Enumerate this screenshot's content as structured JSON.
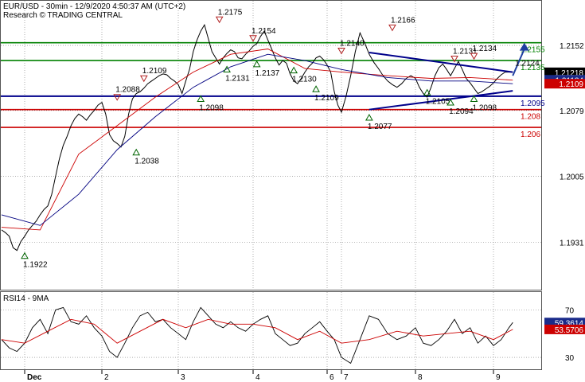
{
  "header": {
    "title": "EUR/USD - 30min - 12/9/2020 4:50:37 AM (UTC+2)",
    "subtitle": "Research © TRADING CENTRAL"
  },
  "rsi_panel": {
    "title": "RSI14 - 9MA"
  },
  "colors": {
    "price": "#000000",
    "ma_fast": "#cc0000",
    "ma_slow": "#000080",
    "resistance_lines": "#008000",
    "support_lines": "#cc0000",
    "pivot_line": "#00008b",
    "triangle_lines": "#00008b",
    "up_marker": "#006400",
    "down_marker": "#b22222",
    "target_arrow": "#1f3fa0",
    "current_price_tag": "#000000",
    "ma_tag": "#1a2b8a",
    "ma2_tag": "#cc0000",
    "rsi_tag": "#1a2b8a",
    "rsi_ma_tag": "#cc0000",
    "grid": "#7a7a7a"
  },
  "chart_data": [
    {
      "type": "line",
      "title": "EUR/USD - 30min - 12/9/2020 4:50:37 AM (UTC+2)",
      "x_tick_labels": [
        "Dec",
        "2",
        "3",
        "4",
        "6",
        "7",
        "8",
        "9"
      ],
      "y_tick_labels": [
        "1.2152",
        "1.2079",
        "1.2005",
        "1.1931"
      ],
      "y_ticks": [
        1.2152,
        1.2079,
        1.2005,
        1.1931
      ],
      "ylim": [
        1.1878,
        1.2202
      ],
      "grid": true,
      "horizontal_levels": [
        {
          "value": 1.2155,
          "label": "1.2155",
          "kind": "resistance"
        },
        {
          "value": 1.2135,
          "label": "1.2135",
          "kind": "resistance"
        },
        {
          "value": 1.2095,
          "label": "1.2095",
          "kind": "pivot"
        },
        {
          "value": 1.208,
          "label": "1.208",
          "kind": "support"
        },
        {
          "value": 1.206,
          "label": "1.206",
          "kind": "support"
        }
      ],
      "price_tags": [
        {
          "value": 1.21218,
          "label": "1.21218",
          "kind": "current"
        },
        {
          "value": 1.21134,
          "label": "1.21134",
          "kind": "ma"
        },
        {
          "value": 1.2109,
          "label": "1.2109",
          "kind": "ma2"
        }
      ],
      "annotations": [
        {
          "label": "1.1922",
          "x": 0.3,
          "y": 1.1922,
          "marker": "up"
        },
        {
          "label": "1.2088",
          "x": 1.5,
          "y": 1.2088,
          "marker": "down"
        },
        {
          "label": "1.2109",
          "x": 1.85,
          "y": 1.2109,
          "marker": "down"
        },
        {
          "label": "1.2038",
          "x": 1.75,
          "y": 1.2038,
          "marker": "up"
        },
        {
          "label": "1.2175",
          "x": 2.85,
          "y": 1.2175,
          "marker": "down"
        },
        {
          "label": "1.2098",
          "x": 2.6,
          "y": 1.2098,
          "marker": "up"
        },
        {
          "label": "1.2131",
          "x": 2.95,
          "y": 1.2131,
          "marker": "up"
        },
        {
          "label": "1.2137",
          "x": 3.35,
          "y": 1.2137,
          "marker": "up"
        },
        {
          "label": "1.2154",
          "x": 3.3,
          "y": 1.2154,
          "marker": "down"
        },
        {
          "label": "1.2130",
          "x": 3.85,
          "y": 1.213,
          "marker": "up"
        },
        {
          "label": "1.2140",
          "x": 4.5,
          "y": 1.214,
          "marker": "down"
        },
        {
          "label": "1.2109",
          "x": 4.15,
          "y": 1.2109,
          "marker": "up"
        },
        {
          "label": "1.2166",
          "x": 5.05,
          "y": 1.2166,
          "marker": "down"
        },
        {
          "label": "1.2077",
          "x": 4.8,
          "y": 1.2077,
          "marker": "up"
        },
        {
          "label": "1.2131",
          "x": 5.8,
          "y": 1.2131,
          "marker": "down"
        },
        {
          "label": "1.2134",
          "x": 6.05,
          "y": 1.2134,
          "marker": "down"
        },
        {
          "label": "1.2105",
          "x": 5.45,
          "y": 1.2105,
          "marker": "up"
        },
        {
          "label": "1.2094",
          "x": 5.75,
          "y": 1.2094,
          "marker": "up"
        },
        {
          "label": "1.2098",
          "x": 6.05,
          "y": 1.2098,
          "marker": "up"
        },
        {
          "label": "1.2124",
          "x": 6.6,
          "y": 1.2124,
          "marker": "none"
        }
      ],
      "triangle_pattern": {
        "upper": [
          [
            4.8,
            1.2144
          ],
          [
            6.55,
            1.2122
          ]
        ],
        "lower": [
          [
            4.8,
            1.208
          ],
          [
            6.55,
            1.2101
          ]
        ]
      },
      "target_arrow": {
        "from": [
          6.55,
          1.2118
        ],
        "to": [
          6.7,
          1.2155
        ]
      },
      "series": [
        {
          "name": "price",
          "x": [
            0.0,
            0.05,
            0.1,
            0.15,
            0.2,
            0.25,
            0.3,
            0.35,
            0.4,
            0.45,
            0.5,
            0.55,
            0.6,
            0.65,
            0.7,
            0.75,
            0.8,
            0.85,
            0.9,
            0.95,
            1.0,
            1.05,
            1.1,
            1.15,
            1.2,
            1.25,
            1.3,
            1.35,
            1.4,
            1.45,
            1.5,
            1.55,
            1.6,
            1.65,
            1.7,
            1.75,
            1.8,
            1.85,
            1.9,
            1.95,
            2.0,
            2.05,
            2.1,
            2.15,
            2.2,
            2.25,
            2.3,
            2.35,
            2.4,
            2.45,
            2.5,
            2.55,
            2.6,
            2.65,
            2.7,
            2.75,
            2.8,
            2.85,
            2.9,
            2.95,
            3.0,
            3.05,
            3.1,
            3.15,
            3.2,
            3.25,
            3.3,
            3.35,
            3.4,
            3.45,
            3.5,
            3.55,
            3.6,
            3.65,
            3.7,
            3.75,
            3.8,
            3.85,
            3.9,
            3.95,
            4.0,
            4.05,
            4.1,
            4.15,
            4.2,
            4.25,
            4.3,
            4.35,
            4.4,
            4.45,
            4.5,
            4.55,
            4.6,
            4.65,
            4.7,
            4.75,
            4.8,
            4.85,
            4.9,
            4.95,
            5.0,
            5.05,
            5.1,
            5.15,
            5.2,
            5.25,
            5.3,
            5.35,
            5.4,
            5.45,
            5.5,
            5.55,
            5.6,
            5.65,
            5.7,
            5.75,
            5.8,
            5.85,
            5.9,
            5.95,
            6.0,
            6.05,
            6.1,
            6.15,
            6.2,
            6.25,
            6.3,
            6.35,
            6.4,
            6.45,
            6.5,
            6.55
          ],
          "values": [
            1.1945,
            1.1942,
            1.1938,
            1.1925,
            1.1922,
            1.1932,
            1.1938,
            1.1945,
            1.195,
            1.1955,
            1.1962,
            1.1968,
            1.1972,
            1.1985,
            1.2005,
            1.2025,
            1.204,
            1.205,
            1.2062,
            1.207,
            1.2075,
            1.2072,
            1.2068,
            1.2074,
            1.2079,
            1.2085,
            1.2088,
            1.2075,
            1.2052,
            1.2045,
            1.2042,
            1.2038,
            1.205,
            1.2075,
            1.2092,
            1.2098,
            1.21,
            1.2104,
            1.2109,
            1.2112,
            1.2115,
            1.2118,
            1.212,
            1.2119,
            1.2115,
            1.2112,
            1.2108,
            1.2098,
            1.2112,
            1.2125,
            1.2145,
            1.2158,
            1.2168,
            1.2175,
            1.216,
            1.2145,
            1.2138,
            1.2131,
            1.2138,
            1.2143,
            1.2147,
            1.2145,
            1.2138,
            1.2137,
            1.2142,
            1.2146,
            1.2151,
            1.2154,
            1.2162,
            1.2168,
            1.2158,
            1.2148,
            1.2138,
            1.213,
            1.2135,
            1.2132,
            1.212,
            1.2112,
            1.2109,
            1.2115,
            1.2122,
            1.2128,
            1.2132,
            1.2138,
            1.214,
            1.2136,
            1.213,
            1.2122,
            1.21,
            1.2085,
            1.2077,
            1.2095,
            1.2118,
            1.2145,
            1.2166,
            1.2155,
            1.2142,
            1.2133,
            1.2126,
            1.2118,
            1.2112,
            1.2108,
            1.2105,
            1.2109,
            1.2115,
            1.2118,
            1.2115,
            1.2105,
            1.2098,
            1.2094,
            1.2105,
            1.2118,
            1.2127,
            1.2131,
            1.2125,
            1.2118,
            1.2126,
            1.2134,
            1.2125,
            1.2115,
            1.211,
            1.2104,
            1.2098,
            1.21,
            1.2103,
            1.2106,
            1.211,
            1.2115,
            1.2119,
            1.2122,
            1.2122,
            1.2122
          ]
        },
        {
          "name": "ma_fast",
          "x": [
            0.0,
            0.5,
            1.0,
            1.5,
            2.0,
            2.5,
            3.0,
            3.5,
            4.0,
            4.5,
            5.0,
            5.5,
            6.0,
            6.55
          ],
          "values": [
            1.1948,
            1.1945,
            1.203,
            1.2062,
            1.2094,
            1.2122,
            1.2142,
            1.2148,
            1.2126,
            1.2122,
            1.2118,
            1.2115,
            1.2116,
            1.2113
          ]
        },
        {
          "name": "ma_slow",
          "x": [
            0.0,
            0.5,
            1.0,
            1.5,
            2.0,
            2.5,
            3.0,
            3.5,
            4.0,
            4.5,
            5.0,
            5.5,
            6.0,
            6.55
          ],
          "values": [
            1.1962,
            1.195,
            1.1985,
            1.2035,
            1.2072,
            1.2105,
            1.2128,
            1.2142,
            1.2135,
            1.2125,
            1.2116,
            1.2112,
            1.2112,
            1.2109
          ]
        }
      ]
    },
    {
      "type": "line",
      "title": "RSI14 - 9MA",
      "y_tick_labels": [
        "70",
        "30"
      ],
      "y_ticks": [
        70,
        30
      ],
      "ylim": [
        20,
        85
      ],
      "grid": true,
      "price_tags": [
        {
          "value": 59.3614,
          "label": "59.3614",
          "kind": "rsi"
        },
        {
          "value": 53.5706,
          "label": "53.5706",
          "kind": "rsi_ma"
        }
      ],
      "series": [
        {
          "name": "RSI14",
          "x": [
            0.0,
            0.1,
            0.2,
            0.3,
            0.4,
            0.5,
            0.6,
            0.7,
            0.8,
            0.9,
            1.0,
            1.1,
            1.2,
            1.3,
            1.4,
            1.5,
            1.6,
            1.7,
            1.8,
            1.9,
            2.0,
            2.1,
            2.2,
            2.3,
            2.4,
            2.5,
            2.6,
            2.7,
            2.8,
            2.9,
            3.0,
            3.1,
            3.2,
            3.3,
            3.4,
            3.5,
            3.6,
            3.7,
            3.8,
            3.9,
            4.0,
            4.1,
            4.2,
            4.3,
            4.4,
            4.5,
            4.6,
            4.7,
            4.8,
            4.9,
            5.0,
            5.1,
            5.2,
            5.3,
            5.4,
            5.5,
            5.6,
            5.7,
            5.8,
            5.9,
            6.0,
            6.1,
            6.2,
            6.3,
            6.4,
            6.5,
            6.55
          ],
          "values": [
            45,
            38,
            35,
            42,
            55,
            62,
            50,
            70,
            72,
            60,
            58,
            65,
            55,
            48,
            35,
            30,
            42,
            55,
            65,
            68,
            60,
            62,
            55,
            50,
            45,
            60,
            72,
            65,
            58,
            55,
            60,
            55,
            52,
            58,
            62,
            65,
            50,
            45,
            40,
            42,
            50,
            55,
            60,
            52,
            45,
            30,
            25,
            45,
            65,
            62,
            50,
            45,
            48,
            55,
            42,
            40,
            45,
            52,
            62,
            50,
            55,
            42,
            48,
            40,
            45,
            55,
            59.4
          ]
        },
        {
          "name": "9MA",
          "x": [
            0.0,
            0.3,
            0.6,
            0.9,
            1.2,
            1.5,
            1.8,
            2.1,
            2.4,
            2.7,
            3.0,
            3.3,
            3.6,
            3.9,
            4.2,
            4.5,
            4.8,
            5.1,
            5.4,
            5.7,
            6.0,
            6.3,
            6.55
          ],
          "values": [
            45,
            42,
            52,
            62,
            58,
            42,
            52,
            62,
            55,
            62,
            58,
            58,
            55,
            45,
            52,
            42,
            45,
            52,
            48,
            50,
            52,
            45,
            53.6
          ]
        }
      ]
    }
  ]
}
